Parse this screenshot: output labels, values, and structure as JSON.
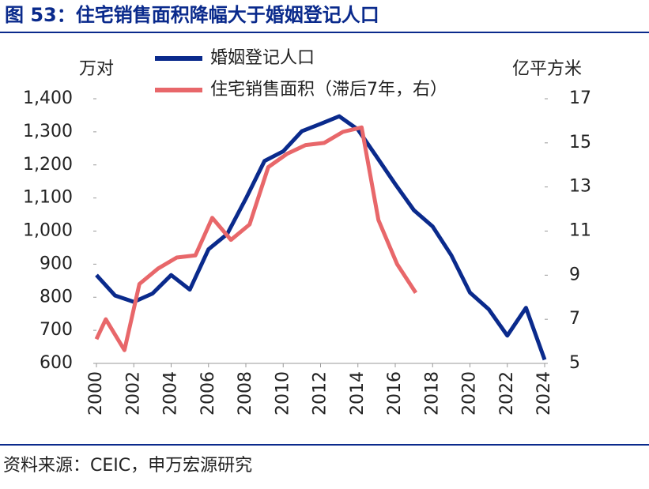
{
  "chart_data": {
    "type": "line",
    "title": "图 53：住宅销售面积降幅大于婚姻登记人口",
    "source": "资料来源：CEIC，申万宏源研究",
    "y_label": "万对",
    "y2_label": "亿平方米",
    "xlim": [
      2000,
      2024
    ],
    "xticks": [
      2000,
      2002,
      2004,
      2006,
      2008,
      2010,
      2012,
      2014,
      2016,
      2018,
      2020,
      2022,
      2024
    ],
    "ylim": [
      600,
      1400
    ],
    "yticks": [
      600,
      700,
      800,
      900,
      {
        "value": 1000,
        "label": "1,000"
      },
      {
        "value": 1100,
        "label": "1,100"
      },
      {
        "value": 1200,
        "label": "1,200"
      },
      {
        "value": 1300,
        "label": "1,300"
      },
      {
        "value": 1400,
        "label": "1,400"
      }
    ],
    "y2lim": [
      5,
      17
    ],
    "y2ticks": [
      5,
      7,
      9,
      11,
      13,
      15,
      17
    ],
    "series": [
      {
        "name": "婚姻登记人口",
        "color": "#0a2a8c",
        "x": [
          2000,
          2001,
          2002,
          2003,
          2004,
          2005,
          2006,
          2007,
          2008,
          2009,
          2010,
          2011,
          2012,
          2013,
          2014,
          2015,
          2016,
          2017,
          2018,
          2019,
          2020,
          2021,
          2022,
          2023,
          2024
        ],
        "values": [
          867,
          805,
          786,
          811,
          867,
          823,
          945,
          991,
          1098,
          1212,
          1241,
          1302,
          1324,
          1347,
          1307,
          1225,
          1142,
          1063,
          1014,
          927,
          814,
          764,
          684,
          768,
          611
        ]
      },
      {
        "name": "住宅销售面积（滞后7年，右）",
        "color": "#e8676a",
        "axis": "y2",
        "x": [
          2000,
          2000.5,
          2001.5,
          2002.3,
          2003.3,
          2004.3,
          2005.3,
          2006.2,
          2007.2,
          2008.2,
          2009.2,
          2010.2,
          2011.2,
          2012.2,
          2013.2,
          2014.2,
          2015.1,
          2016.1,
          2017.1
        ],
        "values": [
          6.1,
          7.0,
          5.6,
          8.6,
          9.3,
          9.8,
          9.9,
          11.6,
          10.6,
          11.3,
          13.9,
          14.5,
          14.9,
          15.0,
          15.5,
          15.7,
          11.5,
          9.5,
          8.2
        ]
      }
    ]
  }
}
